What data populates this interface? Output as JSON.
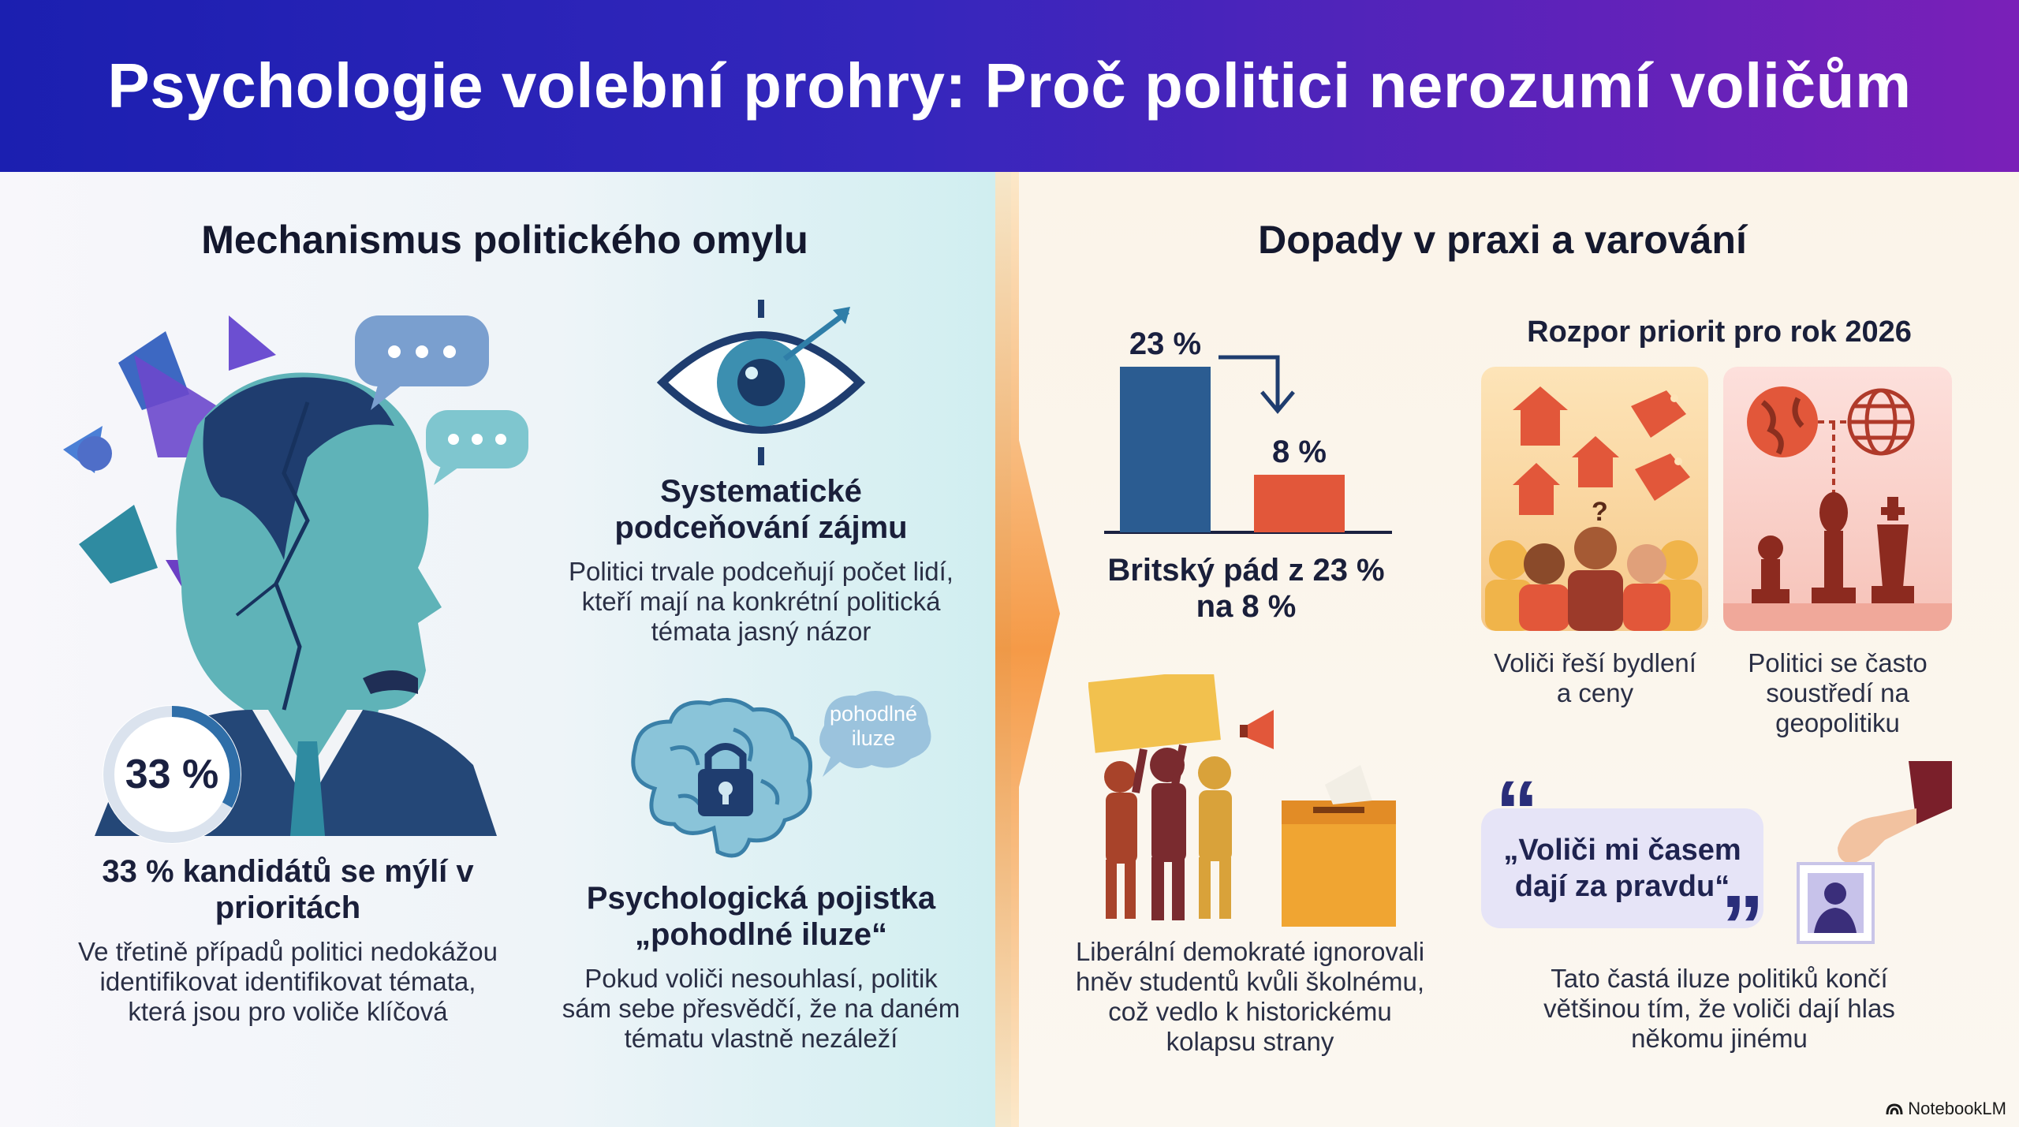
{
  "title": "Psychologie volební prohry: Proč politici nerozumí voličům",
  "left": {
    "heading": "Mechanismus politického omylu",
    "stat_badge": "33 %",
    "stat_title": "33 % kandidátů se mýlí v prioritách",
    "stat_desc": "Ve třetině případů politici nedokážou identifikovat identifikovat témata, která jsou pro voliče klíčová",
    "underestimation_title": "Systematické podceňování zájmu",
    "underestimation_desc": "Politici trvale podceňují počet lidí, kteří mají na konkrétní politická témata jasný názor",
    "illusion_bubble": "pohodlné iluze",
    "insurance_title": "Psychologická pojistka „pohodlné iluze“",
    "insurance_desc": "Pokud voliči nesouhlasí, politik sám sebe přesvědčí, že na daném tématu vlastně nezáleží"
  },
  "right": {
    "heading": "Dopady v praxi a varování",
    "bar_chart_caption": "Britský pád z 23 % na 8 %",
    "protest_caption": "Liberální demokraté ignorovali hněv studentů kvůli školnému, což vedlo k historickému kolapsu strany",
    "priorities_title": "Rozpor priorit pro rok 2026",
    "voters_caption": "Voliči řeší bydlení a ceny",
    "politicians_caption": "Politici se často soustředí na geopolitiku",
    "quote": "„Voliči mi časem dají za pravdu“",
    "quote_caption": "Tato častá iluze politiků končí většinou tím, že voliči dají hlas někomu jinému"
  },
  "chart_data": {
    "type": "bar",
    "categories": [
      "",
      ""
    ],
    "values": [
      23,
      8
    ],
    "value_labels": [
      "23 %",
      "8 %"
    ],
    "title": "",
    "xlabel": "",
    "ylabel": "",
    "colors": [
      "#2b5c91",
      "#e2573a"
    ]
  },
  "footer": "NotebookLM",
  "colors": {
    "header_start": "#1b1fb0",
    "header_end": "#7a20b8",
    "bar_before": "#2b5c91",
    "bar_after": "#e2573a"
  }
}
